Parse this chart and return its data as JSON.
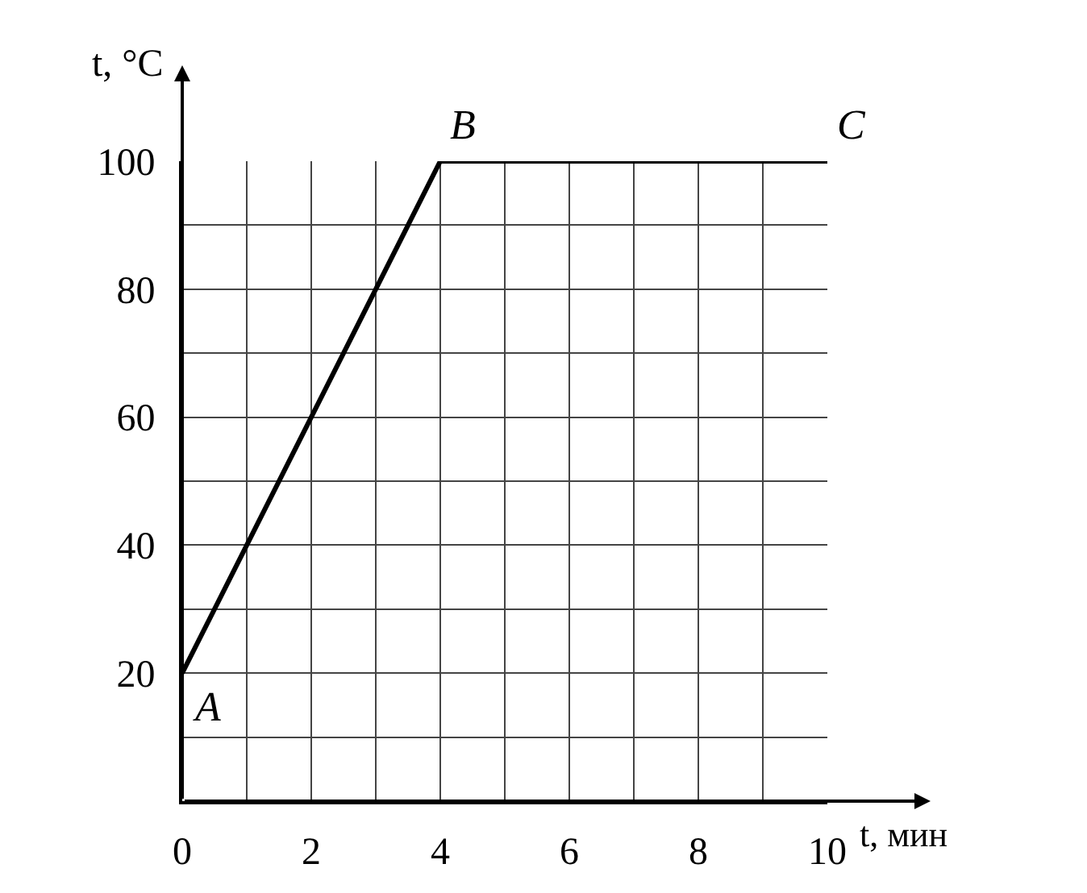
{
  "chart_data": {
    "type": "line",
    "xlabel": "t, мин",
    "ylabel": "t, °C",
    "x": [
      0,
      4,
      10
    ],
    "series": [
      {
        "color": "#000000",
        "values": [
          20,
          100,
          100
        ]
      }
    ],
    "xlim": [
      0,
      10
    ],
    "ylim": [
      0,
      100
    ],
    "xticks": [
      0,
      {
        "value": 1,
        "label": null
      },
      2,
      {
        "value": 3,
        "label": null
      },
      4,
      {
        "value": 5,
        "label": null
      },
      6,
      {
        "value": 7,
        "label": null
      },
      8,
      {
        "value": 9,
        "label": null
      },
      10
    ],
    "yticks": [
      {
        "value": 0,
        "label": null
      },
      {
        "value": 10,
        "label": null
      },
      20,
      {
        "value": 30,
        "label": null
      },
      40,
      {
        "value": 50,
        "label": null
      },
      60,
      {
        "value": 70,
        "label": null
      },
      80,
      {
        "value": 90,
        "label": null
      },
      100
    ],
    "annotations": [
      {
        "text": "A",
        "x": 0,
        "y": 20
      },
      {
        "text": "B",
        "x": 4,
        "y": 100
      },
      {
        "text": "C",
        "x": 10,
        "y": 100
      }
    ],
    "grid": true,
    "marker": "none",
    "line_style": "solid"
  }
}
